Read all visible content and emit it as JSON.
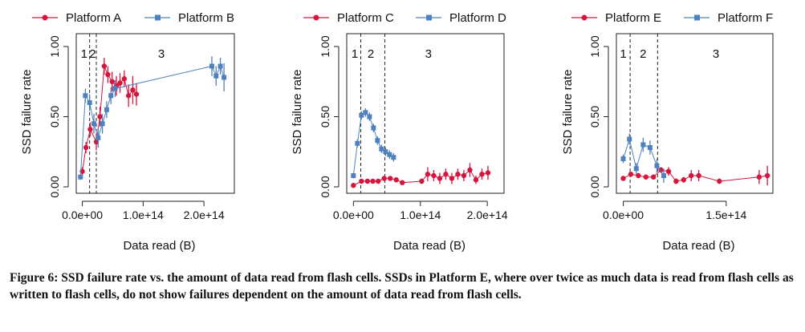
{
  "caption": {
    "label": "Figure 6:",
    "text": "SSD failure rate vs. the amount of data read from flash cells. SSDs in Platform E, where over twice as much data is read from flash cells as written to flash cells, do not show failures dependent on the amount of data read from flash cells."
  },
  "colors": {
    "red": "#d6143c",
    "blue": "#4e81bd"
  },
  "chart_data": [
    {
      "type": "line",
      "xlabel": "Data read (B)",
      "ylabel": "SSD failure rate",
      "xlim": [
        -10000000000000.0,
        250000000000000.0
      ],
      "ylim": [
        0,
        1
      ],
      "xticks": [
        0,
        100000000000000.0,
        200000000000000.0
      ],
      "xtick_labels": [
        "0.0e+00",
        "1.0e+14",
        "2.0e+14"
      ],
      "yticks": [
        0,
        0.5,
        1
      ],
      "ytick_labels": [
        "0.00",
        "0.50",
        "1.00"
      ],
      "regions": [
        {
          "x": 12000000000000.0,
          "label": "1",
          "label_x": 3000000000000.0
        },
        {
          "x": 23000000000000.0,
          "label": "2",
          "label_x": 17000000000000.0
        },
        {
          "label": "3",
          "label_x": 130000000000000.0
        }
      ],
      "series": [
        {
          "name": "Platform A",
          "color": "#d6143c",
          "marker": "circle",
          "x": [
            0,
            6000000000000.0,
            13000000000000.0,
            23000000000000.0,
            29000000000000.0,
            36000000000000.0,
            42000000000000.0,
            49000000000000.0,
            56000000000000.0,
            62000000000000.0,
            69000000000000.0,
            76000000000000.0,
            83000000000000.0,
            89000000000000.0
          ],
          "y": [
            0.11,
            0.28,
            0.41,
            0.32,
            0.5,
            0.86,
            0.8,
            0.75,
            0.72,
            0.74,
            0.77,
            0.65,
            0.69,
            0.66
          ],
          "err": [
            0.03,
            0.04,
            0.05,
            0.06,
            0.07,
            0.06,
            0.06,
            0.07,
            0.07,
            0.07,
            0.06,
            0.08,
            0.1,
            0.08
          ]
        },
        {
          "name": "Platform B",
          "color": "#4e81bd",
          "marker": "square",
          "x": [
            -3000000000000.0,
            5000000000000.0,
            12000000000000.0,
            19000000000000.0,
            26000000000000.0,
            33000000000000.0,
            40000000000000.0,
            47000000000000.0,
            54000000000000.0,
            213000000000000.0,
            220000000000000.0,
            227000000000000.0,
            233000000000000.0
          ],
          "y": [
            0.07,
            0.65,
            0.6,
            0.45,
            0.35,
            0.45,
            0.55,
            0.65,
            0.7,
            0.86,
            0.79,
            0.86,
            0.78
          ],
          "err": [
            0.02,
            0.05,
            0.06,
            0.07,
            0.07,
            0.07,
            0.06,
            0.06,
            0.06,
            0.07,
            0.07,
            0.06,
            0.1
          ]
        }
      ]
    },
    {
      "type": "line",
      "xlabel": "Data read (B)",
      "ylabel": "SSD failure rate",
      "xlim": [
        -10000000000000.0,
        225000000000000.0
      ],
      "ylim": [
        0,
        1
      ],
      "xticks": [
        0,
        100000000000000.0,
        200000000000000.0
      ],
      "xtick_labels": [
        "0.0e+00",
        "1.0e+14",
        "2.0e+14"
      ],
      "yticks": [
        0,
        0.5,
        1
      ],
      "ytick_labels": [
        "0.00",
        "0.50",
        "1.00"
      ],
      "regions": [
        {
          "x": 11000000000000.0,
          "label": "1",
          "label_x": 2000000000000.0
        },
        {
          "x": 47000000000000.0,
          "label": "2",
          "label_x": 26000000000000.0
        },
        {
          "label": "3",
          "label_x": 112000000000000.0
        }
      ],
      "series": [
        {
          "name": "Platform C",
          "color": "#d6143c",
          "marker": "circle",
          "x": [
            0,
            12000000000000.0,
            21000000000000.0,
            29000000000000.0,
            37000000000000.0,
            46000000000000.0,
            55000000000000.0,
            64000000000000.0,
            73000000000000.0,
            102000000000000.0,
            111000000000000.0,
            120000000000000.0,
            129000000000000.0,
            138000000000000.0,
            147000000000000.0,
            156000000000000.0,
            165000000000000.0,
            174000000000000.0,
            183000000000000.0,
            192000000000000.0,
            201000000000000.0
          ],
          "y": [
            0.01,
            0.04,
            0.04,
            0.04,
            0.04,
            0.06,
            0.06,
            0.05,
            0.03,
            0.04,
            0.09,
            0.08,
            0.06,
            0.09,
            0.06,
            0.09,
            0.08,
            0.12,
            0.05,
            0.09,
            0.1
          ],
          "err": [
            0.01,
            0.01,
            0.01,
            0.01,
            0.01,
            0.01,
            0.01,
            0.01,
            0.01,
            0.02,
            0.05,
            0.04,
            0.04,
            0.04,
            0.04,
            0.04,
            0.04,
            0.05,
            0.03,
            0.04,
            0.05
          ]
        },
        {
          "name": "Platform D",
          "color": "#4e81bd",
          "marker": "square",
          "x": [
            0,
            6000000000000.0,
            12000000000000.0,
            18000000000000.0,
            24000000000000.0,
            30000000000000.0,
            36000000000000.0,
            42000000000000.0,
            48000000000000.0,
            54000000000000.0,
            60000000000000.0
          ],
          "y": [
            0.08,
            0.31,
            0.51,
            0.53,
            0.5,
            0.42,
            0.33,
            0.27,
            0.25,
            0.23,
            0.21
          ],
          "err": [
            0.02,
            0.03,
            0.03,
            0.03,
            0.03,
            0.03,
            0.03,
            0.03,
            0.03,
            0.03,
            0.03
          ]
        }
      ]
    },
    {
      "type": "line",
      "xlabel": "Data read (B)",
      "ylabel": "SSD failure rate",
      "xlim": [
        -10000000000000.0,
        218000000000000.0
      ],
      "ylim": [
        0,
        1
      ],
      "xticks": [
        0,
        150000000000000.0
      ],
      "xtick_labels": [
        "0.0e+00",
        "1.5e+14"
      ],
      "yticks": [
        0,
        0.5,
        1
      ],
      "ytick_labels": [
        "0.00",
        "0.50",
        "1.00"
      ],
      "regions": [
        {
          "x": 10000000000000.0,
          "label": "1",
          "label_x": 0
        },
        {
          "x": 50000000000000.0,
          "label": "2",
          "label_x": 29000000000000.0
        },
        {
          "label": "3",
          "label_x": 135000000000000.0
        }
      ],
      "series": [
        {
          "name": "Platform E",
          "color": "#d6143c",
          "marker": "circle",
          "x": [
            0,
            11000000000000.0,
            22000000000000.0,
            33000000000000.0,
            44000000000000.0,
            55000000000000.0,
            66000000000000.0,
            77000000000000.0,
            88000000000000.0,
            99000000000000.0,
            110000000000000.0,
            140000000000000.0,
            198000000000000.0,
            210000000000000.0
          ],
          "y": [
            0.06,
            0.09,
            0.08,
            0.07,
            0.07,
            0.12,
            0.11,
            0.04,
            0.05,
            0.08,
            0.08,
            0.04,
            0.07,
            0.08
          ],
          "err": [
            0.01,
            0.01,
            0.01,
            0.01,
            0.01,
            0.02,
            0.03,
            0.02,
            0.02,
            0.04,
            0.04,
            0.02,
            0.05,
            0.07
          ]
        },
        {
          "name": "Platform F",
          "color": "#4e81bd",
          "marker": "square",
          "x": [
            0,
            9000000000000.0,
            19000000000000.0,
            29000000000000.0,
            39000000000000.0,
            49000000000000.0,
            59000000000000.0
          ],
          "y": [
            0.2,
            0.34,
            0.13,
            0.3,
            0.28,
            0.15,
            0.08
          ],
          "err": [
            0.03,
            0.04,
            0.04,
            0.05,
            0.05,
            0.05,
            0.05
          ]
        }
      ]
    }
  ]
}
